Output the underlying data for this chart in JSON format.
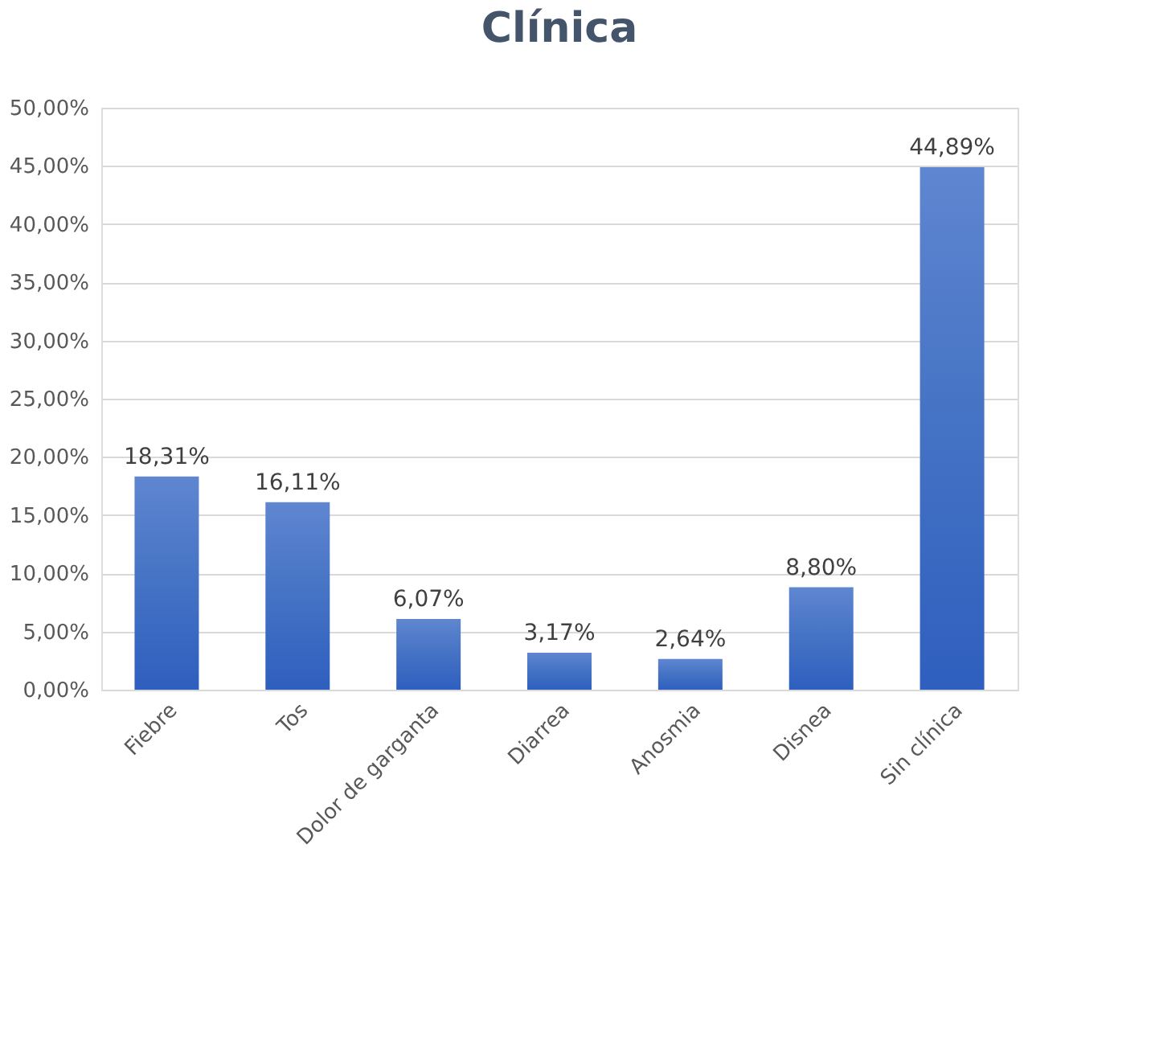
{
  "chart_data": {
    "type": "bar",
    "title": "Clínica",
    "categories": [
      "Fiebre",
      "Tos",
      "Dolor de garganta",
      "Diarrea",
      "Anosmia",
      "Disnea",
      "Sin clínica"
    ],
    "values": [
      18.31,
      16.11,
      6.07,
      3.17,
      2.64,
      8.8,
      44.89
    ],
    "value_labels": [
      "18,31%",
      "16,11%",
      "6,07%",
      "3,17%",
      "2,64%",
      "8,80%",
      "44,89%"
    ],
    "color": "#4472c4",
    "ylim": [
      0,
      50
    ],
    "yticks": [
      {
        "value": 0,
        "label": "0,00%"
      },
      {
        "value": 5,
        "label": "5,00%"
      },
      {
        "value": 10,
        "label": "10,00%"
      },
      {
        "value": 15,
        "label": "15,00%"
      },
      {
        "value": 20,
        "label": "20,00%"
      },
      {
        "value": 25,
        "label": "25,00%"
      },
      {
        "value": 30,
        "label": "30,00%"
      },
      {
        "value": 35,
        "label": "35,00%"
      },
      {
        "value": 40,
        "label": "40,00%"
      },
      {
        "value": 45,
        "label": "45,00%"
      },
      {
        "value": 50,
        "label": "50,00%"
      }
    ],
    "grid": "y"
  }
}
